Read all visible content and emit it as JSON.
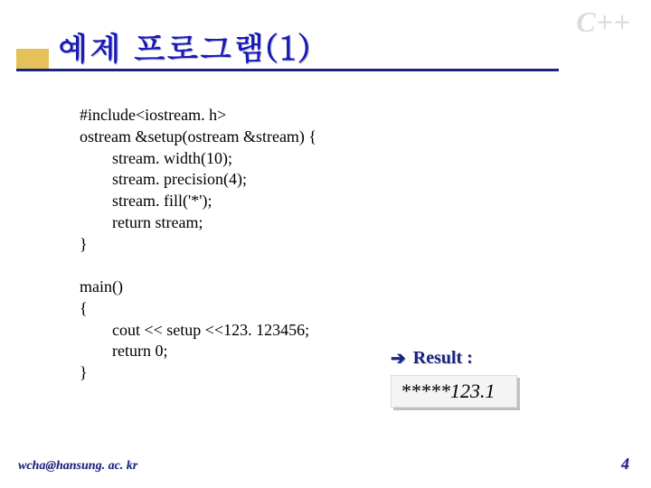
{
  "watermark": "C++",
  "title": "예제 프로그램(1)",
  "code": {
    "lines": [
      {
        "text": "#include<iostream. h>",
        "indent": 0
      },
      {
        "text": "ostream &setup(ostream &stream) {",
        "indent": 0
      },
      {
        "text": "stream. width(10);",
        "indent": 1
      },
      {
        "text": "stream. precision(4);",
        "indent": 1
      },
      {
        "text": "stream. fill('*');",
        "indent": 1
      },
      {
        "text": "return stream;",
        "indent": 1
      },
      {
        "text": "}",
        "indent": 0
      },
      {
        "text": "",
        "indent": 0
      },
      {
        "text": "main()",
        "indent": 0
      },
      {
        "text": "{",
        "indent": 0
      },
      {
        "text": "cout << setup <<123. 123456;",
        "indent": 1
      },
      {
        "text": "return 0;",
        "indent": 1
      },
      {
        "text": "}",
        "indent": 0
      }
    ],
    "font_size": 18,
    "color": "#000000"
  },
  "result": {
    "label": "Result :",
    "output": "*****123.1",
    "label_color": "#1a237e",
    "box_bg": "#f4f4f4",
    "box_shadow": "#c0c0c0"
  },
  "footer": {
    "email": "wcha@hansung. ac. kr",
    "page": "4"
  },
  "colors": {
    "title": "#1a1ab8",
    "accent": "#d6a000",
    "line": "#1a237e",
    "watermark": "#dcdcdc",
    "background": "#ffffff"
  }
}
